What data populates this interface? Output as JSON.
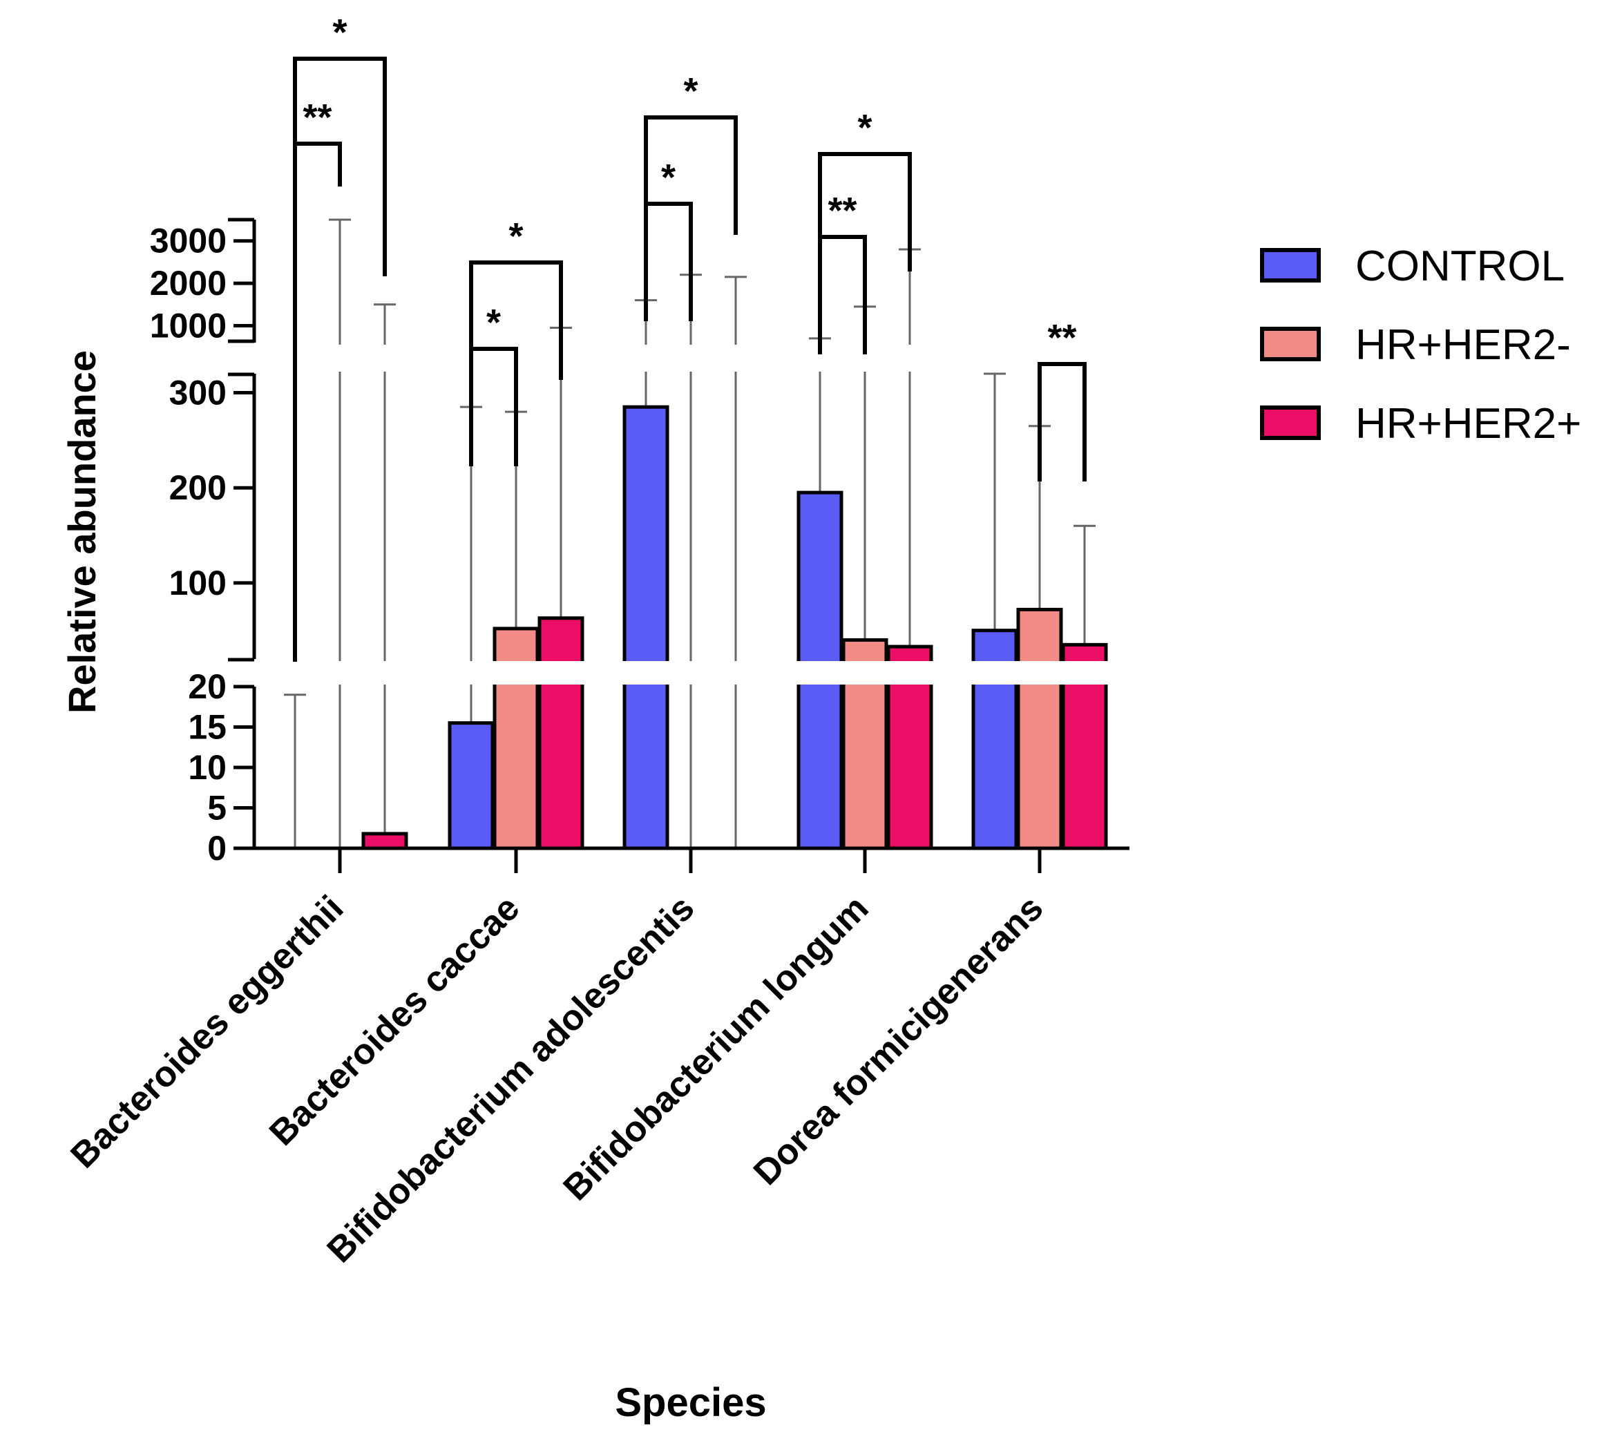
{
  "chart_data": {
    "type": "bar",
    "title": "",
    "xlabel": "Species",
    "ylabel": "Relative abundance",
    "categories": [
      "Bacteroides eggerthii",
      "Bacteroides caccae",
      "Bifidobacterium adolescentis",
      "Bifidobacterium longum",
      "Dorea formicigenerans"
    ],
    "series": [
      {
        "name": "CONTROL",
        "color": "#5b5bf5",
        "values": [
          0,
          15.5,
          285,
          195,
          50
        ],
        "error_upper": [
          19,
          285,
          1600,
          700,
          320
        ]
      },
      {
        "name": "HR+HER2-",
        "color": "#f28a86",
        "values": [
          0,
          52,
          0,
          40,
          72
        ],
        "error_upper": [
          3500,
          280,
          2200,
          1450,
          265
        ]
      },
      {
        "name": "HR+HER2+",
        "color": "#ec0d66",
        "values": [
          1.8,
          63,
          0,
          33,
          35
        ],
        "error_upper": [
          1500,
          950,
          2150,
          2800,
          160
        ]
      }
    ],
    "y_axis_segments": [
      {
        "range": [
          0,
          20
        ],
        "ticks": [
          0,
          5,
          10,
          15,
          20
        ]
      },
      {
        "range": [
          20,
          320
        ],
        "ticks": [
          100,
          200,
          300
        ]
      },
      {
        "range": [
          600,
          3500
        ],
        "ticks": [
          1000,
          2000,
          3000
        ]
      }
    ],
    "significance": [
      {
        "category": 0,
        "from": "CONTROL",
        "to": "HR+HER2-",
        "label": "**"
      },
      {
        "category": 0,
        "from": "CONTROL",
        "to": "HR+HER2+",
        "label": "*"
      },
      {
        "category": 1,
        "from": "CONTROL",
        "to": "HR+HER2-",
        "label": "*"
      },
      {
        "category": 1,
        "from": "CONTROL",
        "to": "HR+HER2+",
        "label": "*"
      },
      {
        "category": 2,
        "from": "CONTROL",
        "to": "HR+HER2-",
        "label": "*"
      },
      {
        "category": 2,
        "from": "CONTROL",
        "to": "HR+HER2+",
        "label": "*"
      },
      {
        "category": 3,
        "from": "CONTROL",
        "to": "HR+HER2-",
        "label": "**"
      },
      {
        "category": 3,
        "from": "CONTROL",
        "to": "HR+HER2+",
        "label": "*"
      },
      {
        "category": 4,
        "from": "HR+HER2-",
        "to": "HR+HER2+",
        "label": "**"
      }
    ],
    "legend_position": "right"
  }
}
